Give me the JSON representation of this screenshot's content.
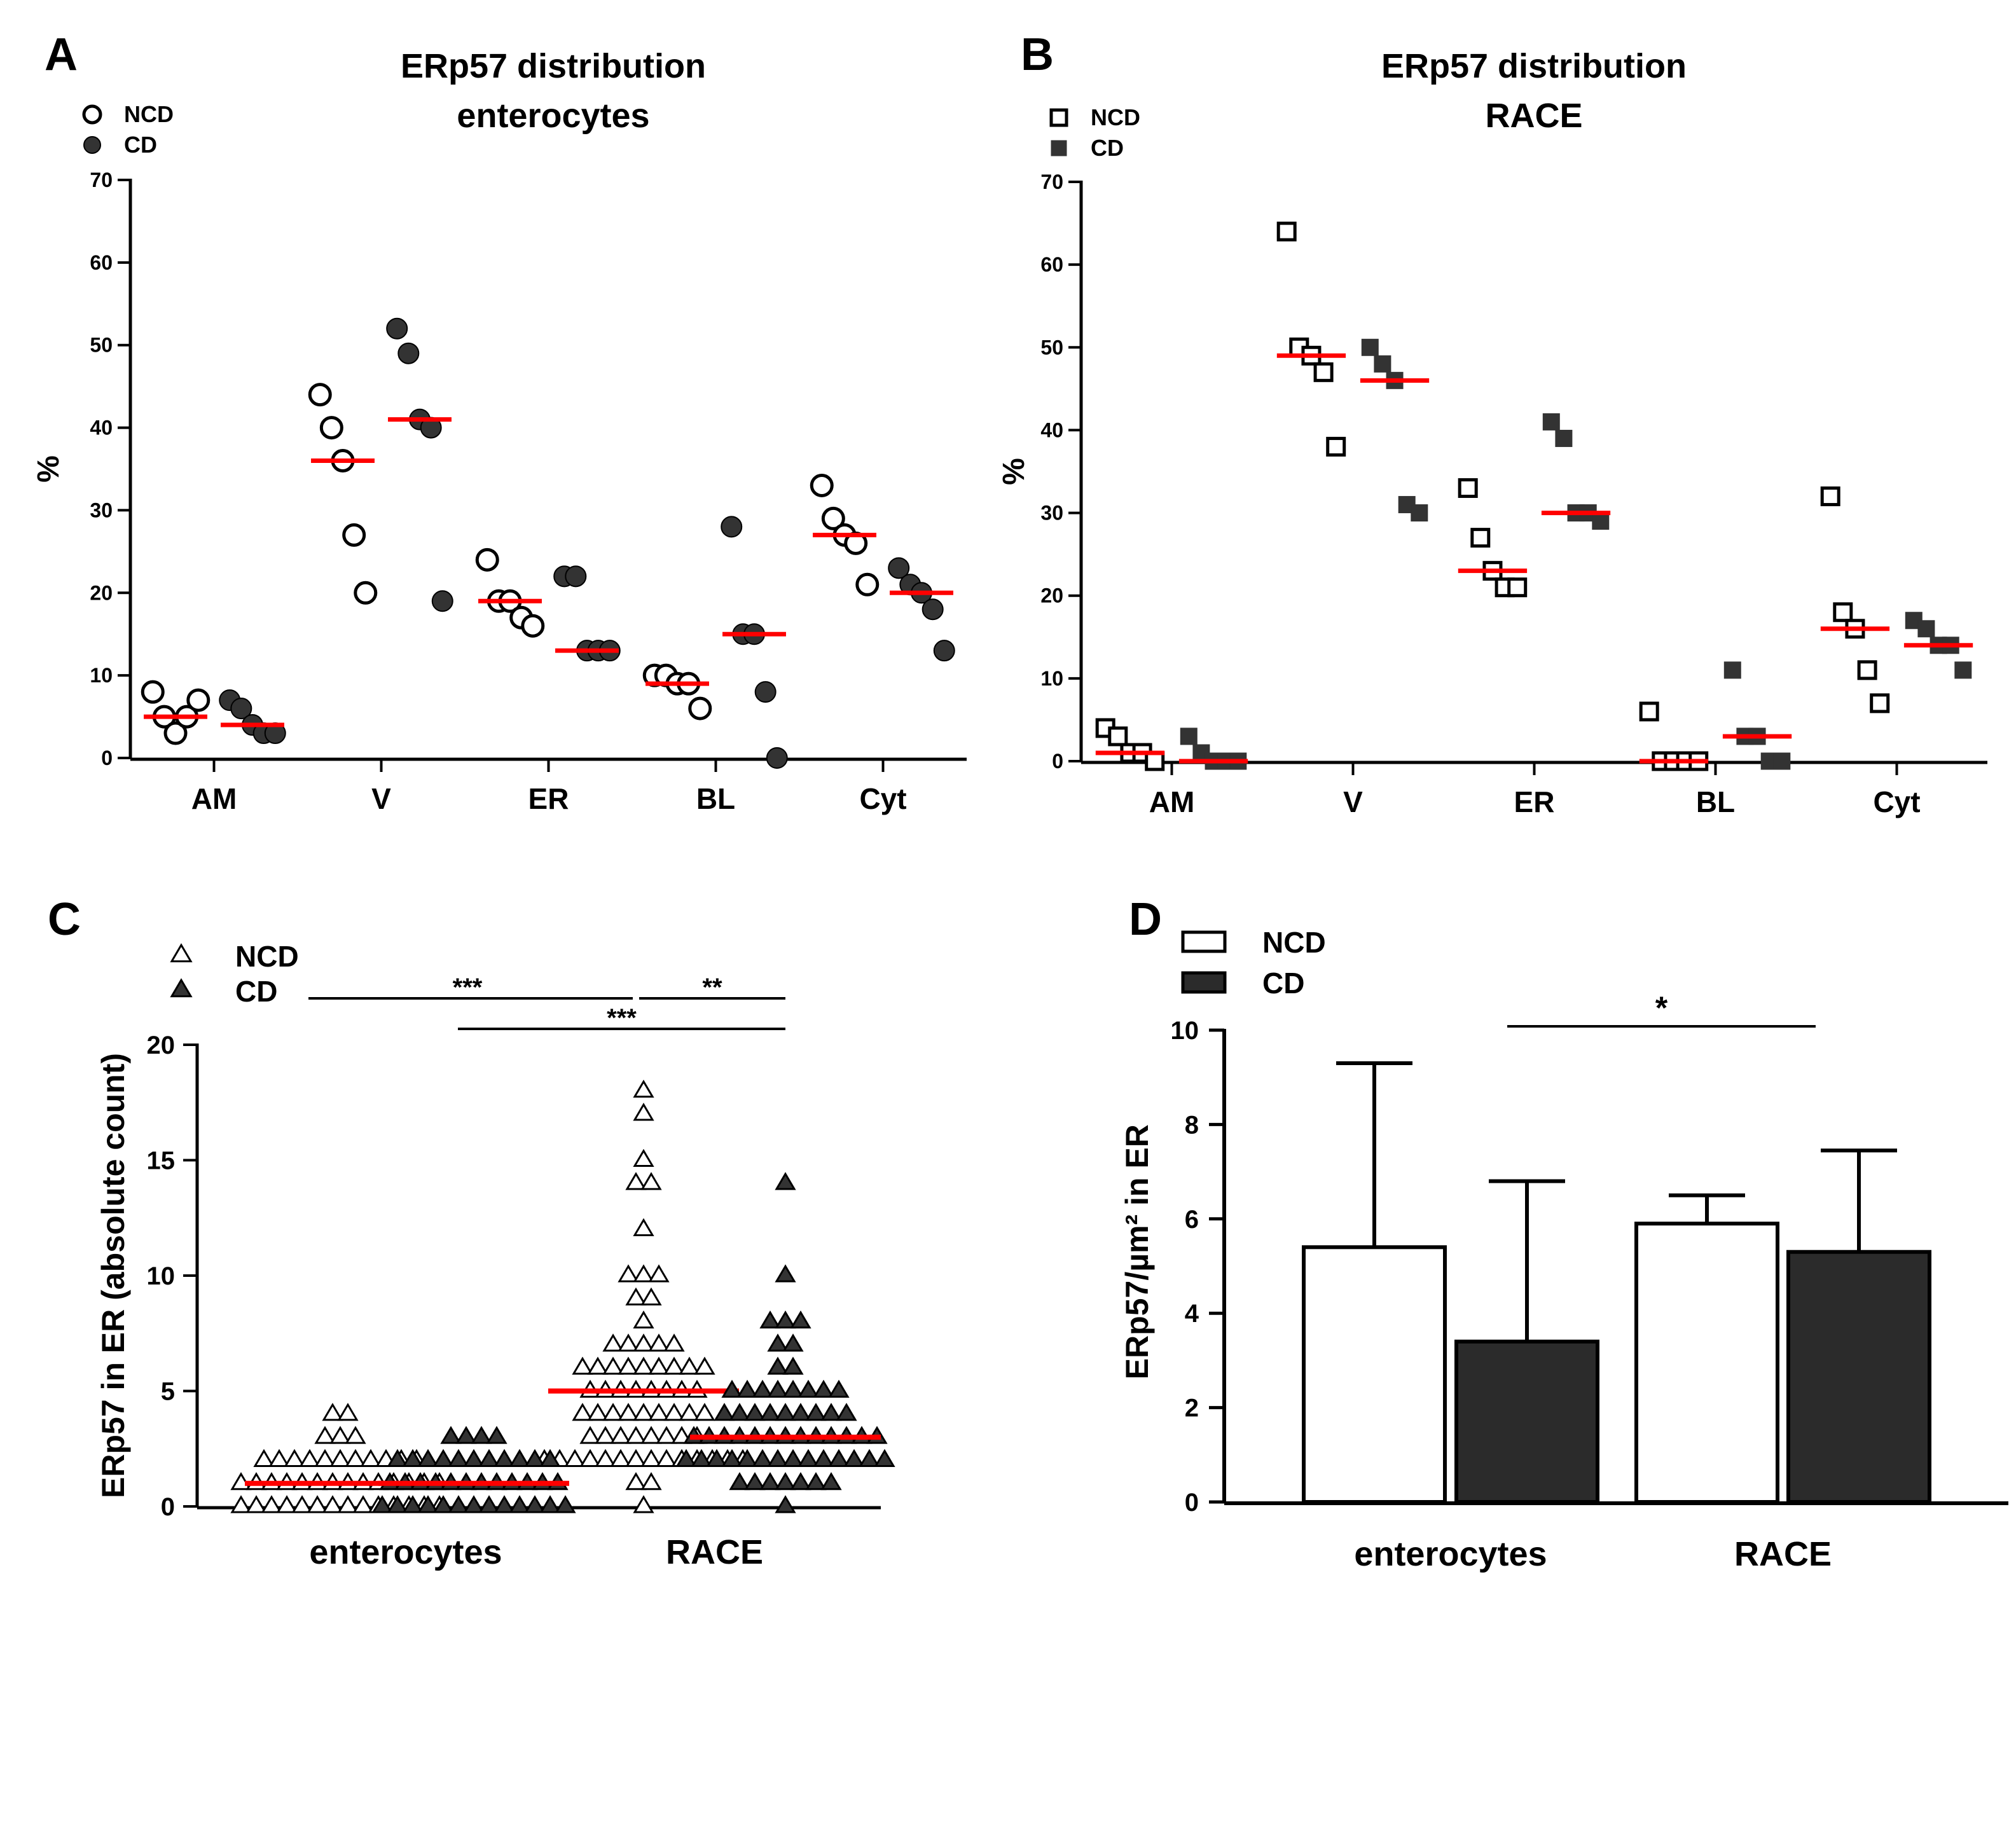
{
  "chart_data": [
    {
      "panel": "A",
      "type": "scatter",
      "title": [
        "ERp57 distribution",
        "enterocytes"
      ],
      "ylabel": "%",
      "ylim": [
        0,
        70
      ],
      "yticks": [
        0,
        10,
        20,
        30,
        40,
        50,
        60,
        70
      ],
      "categories": [
        "AM",
        "V",
        "ER",
        "BL",
        "Cyt"
      ],
      "legend": [
        {
          "label": "NCD",
          "marker": "open-circle"
        },
        {
          "label": "CD",
          "marker": "filled-circle"
        }
      ],
      "series": [
        {
          "name": "NCD",
          "values": [
            [
              8,
              5,
              3,
              5,
              7
            ],
            [
              44,
              40,
              36,
              27,
              20
            ],
            [
              24,
              19,
              19,
              17,
              16
            ],
            [
              10,
              10,
              9,
              9,
              6
            ],
            [
              33,
              29,
              27,
              26,
              21
            ]
          ],
          "medians": [
            5,
            36,
            19,
            9,
            27
          ]
        },
        {
          "name": "CD",
          "values": [
            [
              7,
              6,
              4,
              3,
              3
            ],
            [
              52,
              49,
              41,
              40,
              19
            ],
            [
              22,
              22,
              13,
              13,
              13
            ],
            [
              28,
              15,
              15,
              8,
              0
            ],
            [
              23,
              21,
              20,
              18,
              13
            ]
          ],
          "medians": [
            4,
            41,
            13,
            15,
            20
          ]
        }
      ]
    },
    {
      "panel": "B",
      "type": "scatter",
      "title": [
        "ERp57 distribution",
        "RACE"
      ],
      "ylabel": "%",
      "ylim": [
        0,
        70
      ],
      "yticks": [
        0,
        10,
        20,
        30,
        40,
        50,
        60,
        70
      ],
      "categories": [
        "AM",
        "V",
        "ER",
        "BL",
        "Cyt"
      ],
      "legend": [
        {
          "label": "NCD",
          "marker": "open-square"
        },
        {
          "label": "CD",
          "marker": "filled-square"
        }
      ],
      "series": [
        {
          "name": "NCD",
          "values": [
            [
              4,
              3,
              1,
              1,
              0
            ],
            [
              64,
              50,
              49,
              47,
              38
            ],
            [
              33,
              27,
              23,
              21,
              21
            ],
            [
              6,
              0,
              0,
              0,
              0
            ],
            [
              32,
              18,
              16,
              11,
              7
            ]
          ],
          "medians": [
            1,
            49,
            23,
            0,
            16
          ]
        },
        {
          "name": "CD",
          "values": [
            [
              3,
              1,
              0,
              0,
              0
            ],
            [
              50,
              48,
              46,
              31,
              30
            ],
            [
              41,
              39,
              30,
              30,
              29
            ],
            [
              11,
              3,
              3,
              0,
              0
            ],
            [
              17,
              16,
              14,
              14,
              11
            ]
          ],
          "medians": [
            0,
            46,
            30,
            3,
            14
          ]
        }
      ]
    },
    {
      "panel": "C",
      "type": "scatter",
      "ylabel": "ERp57 in ER (absolute count)",
      "ylim": [
        0,
        20
      ],
      "yticks": [
        0,
        5,
        10,
        15,
        20
      ],
      "categories": [
        "enterocytes",
        "RACE"
      ],
      "legend": [
        {
          "label": "NCD",
          "marker": "open-triangle"
        },
        {
          "label": "CD",
          "marker": "filled-triangle"
        }
      ],
      "series": [
        {
          "name": "NCD",
          "groups": [
            {
              "category": "enterocytes",
              "counts": {
                "0": 14,
                "1": 14,
                "2": 11,
                "3": 3,
                "4": 2
              },
              "median": 1
            },
            {
              "category": "RACE",
              "counts": {
                "0": 1,
                "1": 2,
                "2": 14,
                "3": 8,
                "4": 9,
                "5": 8,
                "6": 9,
                "7": 5,
                "8": 1,
                "9": 2,
                "10": 3,
                "12": 1,
                "14": 2,
                "15": 1,
                "17": 1,
                "18": 1
              },
              "median": 5
            }
          ]
        },
        {
          "name": "CD",
          "groups": [
            {
              "category": "enterocytes",
              "counts": {
                "0": 13,
                "1": 12,
                "2": 11,
                "3": 4
              },
              "median": 1
            },
            {
              "category": "RACE",
              "counts": {
                "0": 1,
                "1": 7,
                "2": 14,
                "3": 13,
                "4": 9,
                "5": 8,
                "6": 2,
                "7": 2,
                "8": 3,
                "10": 1,
                "14": 1
              },
              "median": 3
            }
          ]
        }
      ],
      "significance": [
        {
          "from": "enterocytes NCD",
          "to": "RACE NCD",
          "label": "***"
        },
        {
          "from": "RACE NCD",
          "to": "RACE CD",
          "label": "**"
        },
        {
          "from": "enterocytes CD",
          "to": "RACE CD",
          "label": "***"
        }
      ]
    },
    {
      "panel": "D",
      "type": "bar",
      "ylabel": "ERp57/µm² in ER",
      "ylim": [
        0,
        10
      ],
      "yticks": [
        0,
        2,
        4,
        6,
        8,
        10
      ],
      "categories": [
        "enterocytes",
        "RACE"
      ],
      "legend": [
        {
          "label": "NCD",
          "color": "#ffffff"
        },
        {
          "label": "CD",
          "color": "#2b2b2b"
        }
      ],
      "series": [
        {
          "name": "NCD",
          "values": [
            5.4,
            5.9
          ],
          "errors": [
            3.9,
            0.6
          ]
        },
        {
          "name": "CD",
          "values": [
            3.4,
            5.3
          ],
          "errors": [
            3.4,
            2.15
          ]
        }
      ],
      "significance": [
        {
          "from": "enterocytes CD",
          "to": "RACE NCD",
          "label": "*"
        }
      ]
    }
  ],
  "colors": {
    "median": "#ff0000",
    "filled": "#333333",
    "bar_cd": "#2b2b2b",
    "bar_ncd": "#ffffff"
  }
}
